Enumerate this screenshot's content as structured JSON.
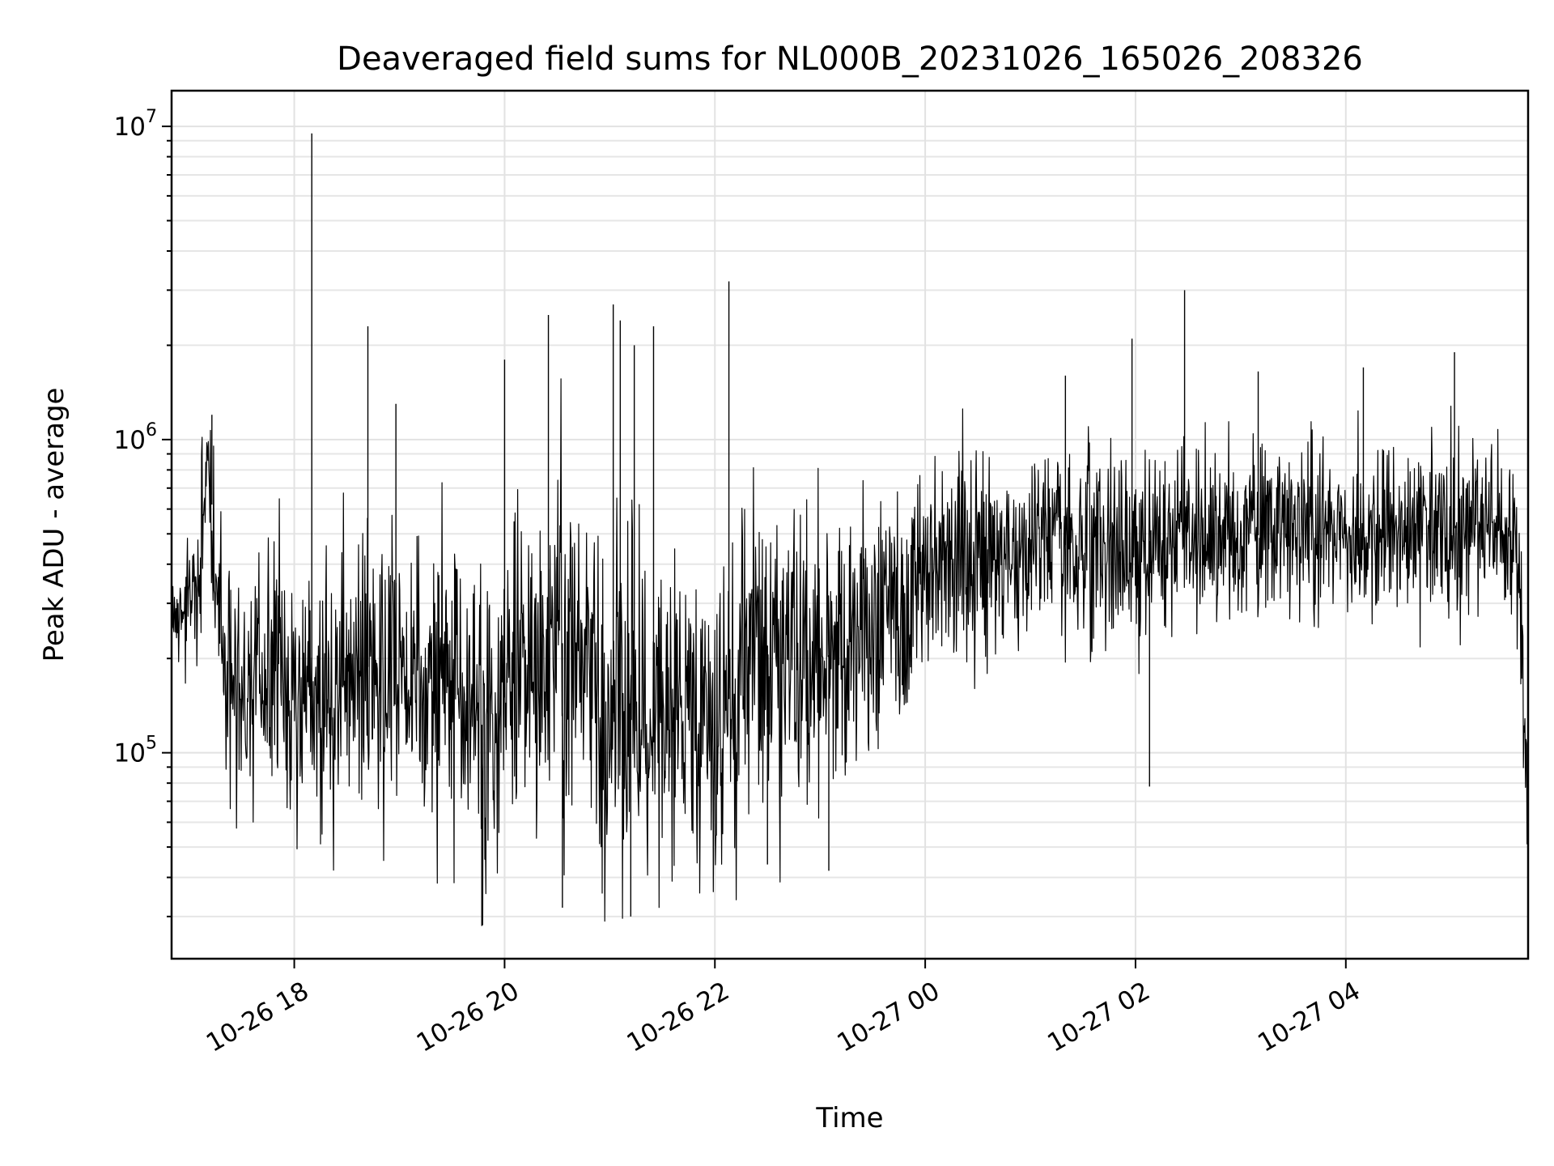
{
  "chart_data": {
    "type": "line",
    "title": "Deaveraged field sums for NL000B_20231026_165026_208326",
    "xlabel": "Time",
    "ylabel": "Peak ADU - average",
    "yscale": "log",
    "ylim": [
      22000,
      13000000
    ],
    "xlim": [
      "2023-10-26T16:50:00",
      "2023-10-27T05:44:00"
    ],
    "grid": true,
    "x_ticks": [
      {
        "t": "2023-10-26T18:00:00",
        "label": "10-26 18"
      },
      {
        "t": "2023-10-26T20:00:00",
        "label": "10-26 20"
      },
      {
        "t": "2023-10-26T22:00:00",
        "label": "10-26 22"
      },
      {
        "t": "2023-10-27T00:00:00",
        "label": "10-27 00"
      },
      {
        "t": "2023-10-27T02:00:00",
        "label": "10-27 02"
      },
      {
        "t": "2023-10-27T04:00:00",
        "label": "10-27 04"
      }
    ],
    "y_ticks": [
      {
        "value": 100000,
        "base": "10",
        "exp": "5"
      },
      {
        "value": 1000000,
        "base": "10",
        "exp": "6"
      },
      {
        "value": 10000000,
        "base": "10",
        "exp": "7"
      }
    ],
    "series": [
      {
        "color": "#000000",
        "sampling_interval_seconds": 10,
        "x": [
          "2023-10-26T16:50:26",
          "2023-10-26T17:00:00",
          "2023-10-26T17:06:00",
          "2023-10-26T17:10:00",
          "2023-10-26T17:13:00",
          "2023-10-26T17:15:00",
          "2023-10-26T17:20:00",
          "2023-10-26T17:25:00",
          "2023-10-26T17:30:00",
          "2023-10-26T17:40:00",
          "2023-10-26T17:50:00",
          "2023-10-26T18:00:00",
          "2023-10-26T18:10:00",
          "2023-10-26T18:20:00",
          "2023-10-26T18:30:00",
          "2023-10-26T18:40:00",
          "2023-10-26T18:50:00",
          "2023-10-26T19:00:00",
          "2023-10-26T19:10:00",
          "2023-10-26T19:20:00",
          "2023-10-26T19:30:00",
          "2023-10-26T19:40:00",
          "2023-10-26T19:50:00",
          "2023-10-26T20:00:00",
          "2023-10-26T20:10:00",
          "2023-10-26T20:20:00",
          "2023-10-26T20:30:00",
          "2023-10-26T20:40:00",
          "2023-10-26T20:50:00",
          "2023-10-26T21:00:00",
          "2023-10-26T21:10:00",
          "2023-10-26T21:20:00",
          "2023-10-26T21:30:00",
          "2023-10-26T21:40:00",
          "2023-10-26T21:50:00",
          "2023-10-26T22:00:00",
          "2023-10-26T22:10:00",
          "2023-10-26T22:20:00",
          "2023-10-26T22:30:00",
          "2023-10-26T22:40:00",
          "2023-10-26T22:50:00",
          "2023-10-26T23:00:00",
          "2023-10-26T23:10:00",
          "2023-10-26T23:20:00",
          "2023-10-26T23:30:00",
          "2023-10-26T23:40:00",
          "2023-10-26T23:50:00",
          "2023-10-27T00:00:00",
          "2023-10-27T00:20:00",
          "2023-10-27T00:40:00",
          "2023-10-27T01:00:00",
          "2023-10-27T01:20:00",
          "2023-10-27T01:40:00",
          "2023-10-27T02:00:00",
          "2023-10-27T02:20:00",
          "2023-10-27T02:40:00",
          "2023-10-27T03:00:00",
          "2023-10-27T03:20:00",
          "2023-10-27T03:40:00",
          "2023-10-27T04:00:00",
          "2023-10-27T04:20:00",
          "2023-10-27T04:40:00",
          "2023-10-27T05:00:00",
          "2023-10-27T05:20:00",
          "2023-10-27T05:35:00",
          "2023-10-27T05:40:00",
          "2023-10-27T05:44:00"
        ],
        "baseline": [
          270000,
          290000,
          330000,
          900000,
          620000,
          330000,
          210000,
          180000,
          170000,
          160000,
          180000,
          165000,
          150000,
          160000,
          200000,
          190000,
          180000,
          190000,
          170000,
          160000,
          150000,
          130000,
          120000,
          150000,
          170000,
          200000,
          240000,
          190000,
          170000,
          130000,
          150000,
          140000,
          130000,
          140000,
          120000,
          110000,
          160000,
          240000,
          220000,
          200000,
          200000,
          200000,
          210000,
          230000,
          250000,
          270000,
          300000,
          380000,
          430000,
          420000,
          450000,
          460000,
          470000,
          470000,
          480000,
          500000,
          500000,
          490000,
          500000,
          510000,
          510000,
          520000,
          520000,
          530000,
          480000,
          300000,
          60000
        ],
        "spread": [
          1.4,
          1.6,
          1.7,
          1.5,
          1.8,
          2.0,
          2.1,
          2.3,
          2.3,
          2.4,
          2.4,
          2.3,
          2.3,
          2.5,
          2.9,
          2.9,
          2.9,
          2.8,
          2.8,
          2.9,
          2.8,
          2.8,
          2.9,
          2.9,
          3.0,
          3.1,
          3.3,
          3.3,
          3.3,
          3.6,
          3.6,
          3.4,
          3.1,
          2.9,
          2.7,
          2.6,
          3.0,
          3.0,
          3.0,
          2.9,
          2.8,
          2.7,
          2.5,
          2.4,
          2.3,
          2.3,
          2.2,
          2.1,
          2.0,
          2.0,
          1.9,
          1.9,
          1.9,
          1.9,
          1.9,
          1.8,
          1.8,
          1.8,
          1.8,
          1.8,
          1.8,
          1.8,
          1.8,
          1.8,
          1.8,
          1.8,
          1.6
        ],
        "spikes": [
          {
            "t": "2023-10-26T17:13:00",
            "y": 1200000
          },
          {
            "t": "2023-10-26T18:10:00",
            "y": 9500000
          },
          {
            "t": "2023-10-26T18:42:00",
            "y": 2300000
          },
          {
            "t": "2023-10-26T18:58:00",
            "y": 1300000
          },
          {
            "t": "2023-10-26T19:47:00",
            "y": 28000
          },
          {
            "t": "2023-10-26T20:00:00",
            "y": 1800000
          },
          {
            "t": "2023-10-26T20:25:00",
            "y": 2500000
          },
          {
            "t": "2023-10-26T20:33:00",
            "y": 32000
          },
          {
            "t": "2023-10-26T21:02:00",
            "y": 2700000
          },
          {
            "t": "2023-10-26T21:06:00",
            "y": 2400000
          },
          {
            "t": "2023-10-26T21:12:00",
            "y": 30000
          },
          {
            "t": "2023-10-26T21:14:00",
            "y": 2000000
          },
          {
            "t": "2023-10-26T21:25:00",
            "y": 2300000
          },
          {
            "t": "2023-10-26T22:08:00",
            "y": 3200000
          },
          {
            "t": "2023-10-26T22:30:00",
            "y": 44000
          },
          {
            "t": "2023-10-26T23:05:00",
            "y": 42000
          },
          {
            "t": "2023-10-27T01:20:00",
            "y": 1600000
          },
          {
            "t": "2023-10-27T01:58:00",
            "y": 2100000
          },
          {
            "t": "2023-10-27T02:08:00",
            "y": 78000
          },
          {
            "t": "2023-10-27T02:28:00",
            "y": 3000000
          },
          {
            "t": "2023-10-27T03:10:00",
            "y": 1650000
          },
          {
            "t": "2023-10-27T04:10:00",
            "y": 1700000
          },
          {
            "t": "2023-10-27T05:02:00",
            "y": 1900000
          }
        ]
      }
    ]
  }
}
